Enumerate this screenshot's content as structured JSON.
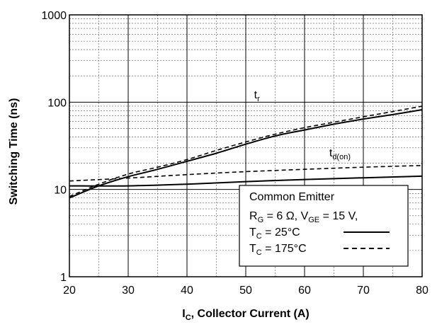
{
  "chart_data": {
    "type": "line",
    "xlabel": {
      "main": "I",
      "sub": "C",
      "rest": ", Collector Current (A)"
    },
    "ylabel": "Switching Time (ns)",
    "xlim": [
      20,
      80
    ],
    "ylim": [
      1,
      1000
    ],
    "y_scale": "log",
    "grid": true,
    "x_ticks": [
      "20",
      "30",
      "40",
      "50",
      "60",
      "70",
      "80"
    ],
    "y_ticks": [
      "1",
      "10",
      "100",
      "1000"
    ],
    "series": [
      {
        "name": "t_r",
        "condition": "T_C = 25°C",
        "style": "solid",
        "x": [
          20,
          25,
          30,
          35,
          40,
          45,
          50,
          55,
          60,
          65,
          70,
          75,
          80
        ],
        "y": [
          8,
          11,
          14,
          17,
          21,
          26,
          33,
          41,
          48,
          56,
          64,
          72,
          82
        ]
      },
      {
        "name": "t_r",
        "condition": "T_C = 175°C",
        "style": "dashed",
        "x": [
          20,
          25,
          30,
          35,
          40,
          45,
          50,
          55,
          60,
          65,
          70,
          75,
          80
        ],
        "y": [
          8.3,
          11.5,
          15,
          18,
          22,
          28,
          35,
          43,
          51,
          59,
          68,
          78,
          90
        ]
      },
      {
        "name": "t_d(on)",
        "condition": "T_C = 25°C",
        "style": "solid",
        "x": [
          20,
          30,
          40,
          50,
          60,
          70,
          80
        ],
        "y": [
          11,
          11,
          11.5,
          12.3,
          13,
          13.6,
          14.2
        ]
      },
      {
        "name": "t_d(on)",
        "condition": "T_C = 175°C",
        "style": "dashed",
        "x": [
          20,
          30,
          40,
          50,
          60,
          70,
          80
        ],
        "y": [
          12.5,
          13.5,
          14.8,
          16,
          17,
          18,
          18.8
        ]
      }
    ],
    "annotations": [
      {
        "main": "t",
        "sub": "r",
        "x": 51.4,
        "y": 110
      },
      {
        "main": "t",
        "sub": "d(on)",
        "x": 64.2,
        "y": 24
      }
    ],
    "legend": {
      "position": "bottom-right",
      "title": "Common Emitter",
      "conditions": {
        "rg_main": "R",
        "rg_sub": "G",
        "rg_val": " = 6 Ω, ",
        "vge_main": "V",
        "vge_sub": "GE",
        "vge_val": " = 15 V,"
      },
      "entries": [
        {
          "main": "T",
          "sub": "C",
          "val": " = 25°C",
          "style": "solid"
        },
        {
          "main": "T",
          "sub": "C",
          "val": " = 175°C",
          "style": "dashed"
        }
      ]
    }
  }
}
